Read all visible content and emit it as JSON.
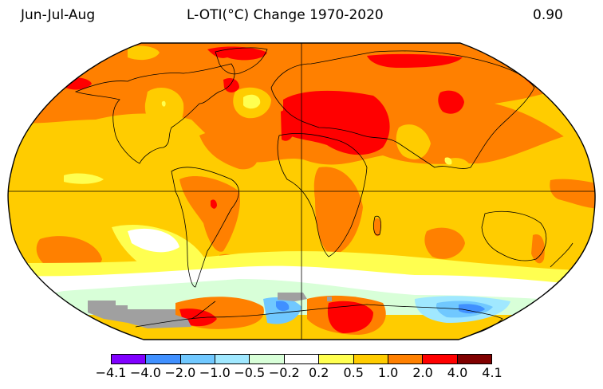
{
  "header": {
    "season": "Jun-Jul-Aug",
    "title": "L-OTI(°C) Change 1970-2020",
    "global_mean": "0.90"
  },
  "map": {
    "projection": "Robinson",
    "gridlines": [
      "equator",
      "prime-meridian"
    ],
    "no_data_color": "#a0a0a0",
    "background_class_color": "#ffcc00"
  },
  "legend": {
    "ticks": [
      "−4.1",
      "−4.0",
      "−2.0",
      "−1.0",
      "−0.5",
      "−0.2",
      "0.2",
      "0.5",
      "1.0",
      "2.0",
      "4.0",
      "4.1"
    ],
    "colors": [
      "#8000ff",
      "#4090ff",
      "#70c8ff",
      "#a0e8ff",
      "#d8ffd8",
      "#ffffff",
      "#ffff50",
      "#ffcc00",
      "#ff8000",
      "#ff0000",
      "#800000"
    ],
    "bins": [
      {
        "min": -4.1,
        "max": -4.0
      },
      {
        "min": -4.0,
        "max": -2.0
      },
      {
        "min": -2.0,
        "max": -1.0
      },
      {
        "min": -1.0,
        "max": -0.5
      },
      {
        "min": -0.5,
        "max": -0.2
      },
      {
        "min": -0.2,
        "max": 0.2
      },
      {
        "min": 0.2,
        "max": 0.5
      },
      {
        "min": 0.5,
        "max": 1.0
      },
      {
        "min": 1.0,
        "max": 2.0
      },
      {
        "min": 2.0,
        "max": 4.0
      },
      {
        "min": 4.0,
        "max": 4.1
      }
    ]
  }
}
